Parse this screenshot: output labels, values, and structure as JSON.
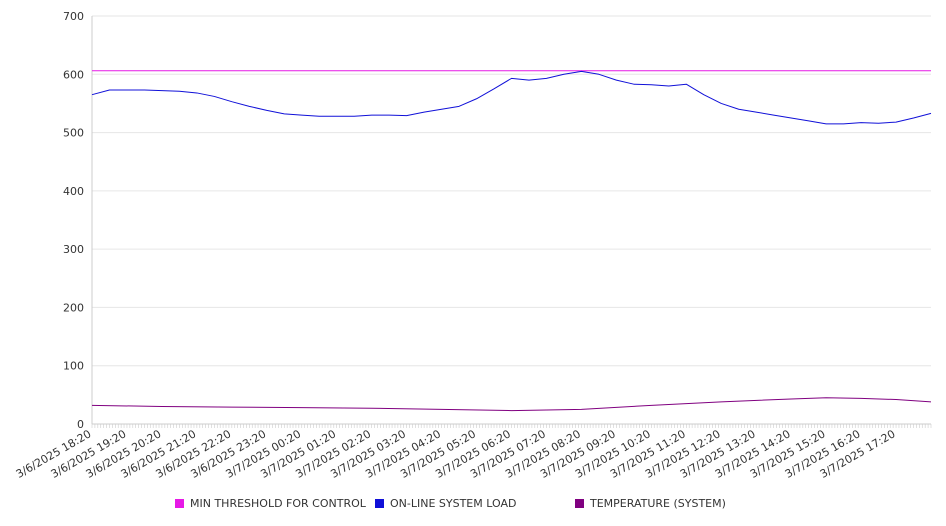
{
  "chart_data": {
    "type": "line",
    "title": "",
    "xlabel": "",
    "ylabel": "",
    "ylim": [
      0,
      700
    ],
    "y_ticks": [
      0,
      100,
      200,
      300,
      400,
      500,
      600,
      700
    ],
    "grid": "horizontal",
    "legend_position": "bottom",
    "x_tick_labels": [
      "3/6/2025 18:20",
      "3/6/2025 19:20",
      "3/6/2025 20:20",
      "3/6/2025 21:20",
      "3/6/2025 22:20",
      "3/6/2025 23:20",
      "3/7/2025 00:20",
      "3/7/2025 01:20",
      "3/7/2025 02:20",
      "3/7/2025 03:20",
      "3/7/2025 04:20",
      "3/7/2025 05:20",
      "3/7/2025 06:20",
      "3/7/2025 07:20",
      "3/7/2025 08:20",
      "3/7/2025 09:20",
      "3/7/2025 10:20",
      "3/7/2025 11:20",
      "3/7/2025 12:20",
      "3/7/2025 13:20",
      "3/7/2025 14:20",
      "3/7/2025 15:20",
      "3/7/2025 16:20",
      "3/7/2025 17:20"
    ],
    "x_range": [
      "3/6/2025 18:20",
      "3/7/2025 18:20"
    ],
    "series": [
      {
        "name": "MIN THRESHOLD FOR CONTROL",
        "color": "#e619e6",
        "x": [
          "3/6/2025 18:20",
          "3/7/2025 18:20"
        ],
        "values": [
          606,
          606
        ]
      },
      {
        "name": "ON-LINE SYSTEM LOAD",
        "color": "#1010d8",
        "x": [
          "3/6/2025 18:20",
          "3/6/2025 18:50",
          "3/6/2025 19:20",
          "3/6/2025 19:50",
          "3/6/2025 20:20",
          "3/6/2025 20:50",
          "3/6/2025 21:20",
          "3/6/2025 21:50",
          "3/6/2025 22:20",
          "3/6/2025 22:50",
          "3/6/2025 23:20",
          "3/6/2025 23:50",
          "3/7/2025 00:20",
          "3/7/2025 00:50",
          "3/7/2025 01:20",
          "3/7/2025 01:50",
          "3/7/2025 02:20",
          "3/7/2025 02:50",
          "3/7/2025 03:20",
          "3/7/2025 03:50",
          "3/7/2025 04:20",
          "3/7/2025 04:50",
          "3/7/2025 05:20",
          "3/7/2025 05:50",
          "3/7/2025 06:20",
          "3/7/2025 06:50",
          "3/7/2025 07:20",
          "3/7/2025 07:50",
          "3/7/2025 08:20",
          "3/7/2025 08:50",
          "3/7/2025 09:20",
          "3/7/2025 09:50",
          "3/7/2025 10:20",
          "3/7/2025 10:50",
          "3/7/2025 11:20",
          "3/7/2025 11:50",
          "3/7/2025 12:20",
          "3/7/2025 12:50",
          "3/7/2025 13:20",
          "3/7/2025 13:50",
          "3/7/2025 14:20",
          "3/7/2025 14:50",
          "3/7/2025 15:20",
          "3/7/2025 15:50",
          "3/7/2025 16:20",
          "3/7/2025 16:50",
          "3/7/2025 17:20",
          "3/7/2025 17:50",
          "3/7/2025 18:20"
        ],
        "values": [
          565,
          573,
          573,
          573,
          572,
          571,
          568,
          562,
          553,
          545,
          538,
          532,
          530,
          528,
          528,
          528,
          530,
          530,
          529,
          535,
          540,
          545,
          558,
          575,
          593,
          590,
          593,
          600,
          605,
          600,
          590,
          583,
          582,
          580,
          583,
          565,
          550,
          540,
          535,
          530,
          525,
          520,
          515,
          515,
          517,
          516,
          518,
          525,
          533
        ]
      },
      {
        "name": "TEMPERATURE (SYSTEM)",
        "color": "#800080",
        "x": [
          "3/6/2025 18:20",
          "3/6/2025 20:20",
          "3/6/2025 22:20",
          "3/7/2025 00:20",
          "3/7/2025 02:20",
          "3/7/2025 04:20",
          "3/7/2025 06:20",
          "3/7/2025 08:20",
          "3/7/2025 10:20",
          "3/7/2025 12:20",
          "3/7/2025 14:20",
          "3/7/2025 15:20",
          "3/7/2025 16:20",
          "3/7/2025 17:20",
          "3/7/2025 18:20"
        ],
        "values": [
          32,
          30,
          29,
          28,
          27,
          25,
          23,
          25,
          32,
          38,
          43,
          45,
          44,
          42,
          38
        ]
      }
    ]
  }
}
